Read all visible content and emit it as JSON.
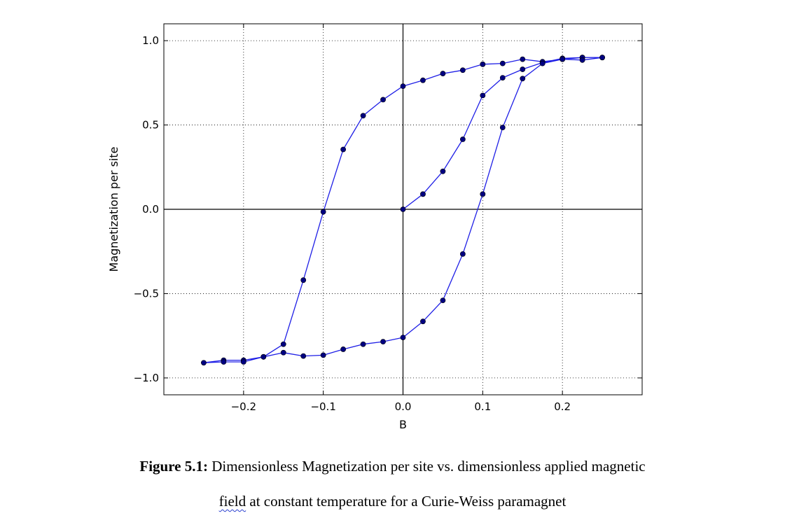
{
  "chart_data": {
    "type": "line",
    "xlabel": "B",
    "ylabel": "Magnetization per site",
    "xlim": [
      -0.3,
      0.3
    ],
    "ylim": [
      -1.1,
      1.1
    ],
    "xticks": [
      -0.2,
      -0.1,
      0.0,
      0.1,
      0.2
    ],
    "xtick_labels": [
      "−0.2",
      "−0.1",
      "0.0",
      "0.1",
      "0.2"
    ],
    "yticks": [
      1.0,
      0.5,
      0.0,
      -0.5,
      -1.0
    ],
    "ytick_labels": [
      "1.0",
      "0.5",
      "0.0",
      "−0.5",
      "−1.0"
    ],
    "grid": true,
    "line_color": "#1f1fe6",
    "marker_color": "#000080",
    "series": [
      {
        "x": [
          0.0,
          0.025,
          0.05,
          0.075,
          0.1,
          0.125,
          0.15,
          0.175,
          0.2,
          0.225,
          0.25,
          0.225,
          0.2,
          0.175,
          0.15,
          0.125,
          0.1,
          0.075,
          0.05,
          0.025,
          0.0,
          -0.025,
          -0.05,
          -0.075,
          -0.1,
          -0.125,
          -0.15,
          -0.175,
          -0.2,
          -0.225,
          -0.25,
          -0.225,
          -0.2,
          -0.175,
          -0.15,
          -0.125,
          -0.1,
          -0.075,
          -0.05,
          -0.025,
          0.0,
          0.025,
          0.05,
          0.075,
          0.1,
          0.125,
          0.15,
          0.175,
          0.2,
          0.225,
          0.25
        ],
        "y": [
          0.0,
          0.09,
          0.225,
          0.415,
          0.675,
          0.78,
          0.83,
          0.87,
          0.895,
          0.9,
          0.9,
          0.9,
          0.89,
          0.875,
          0.89,
          0.865,
          0.86,
          0.825,
          0.805,
          0.765,
          0.73,
          0.65,
          0.555,
          0.355,
          -0.015,
          -0.42,
          -0.8,
          -0.875,
          -0.895,
          -0.895,
          -0.91,
          -0.905,
          -0.905,
          -0.875,
          -0.85,
          -0.87,
          -0.865,
          -0.83,
          -0.8,
          -0.785,
          -0.76,
          -0.665,
          -0.54,
          -0.265,
          0.09,
          0.485,
          0.775,
          0.865,
          0.89,
          0.885,
          0.9
        ]
      }
    ]
  },
  "caption": {
    "label": "Figure 5.1:",
    "line1": " Dimensionless Magnetization per site vs. dimensionless applied magnetic",
    "line2_word": "field",
    "line2_rest": " at constant temperature for a Curie-Weiss paramagnet"
  }
}
